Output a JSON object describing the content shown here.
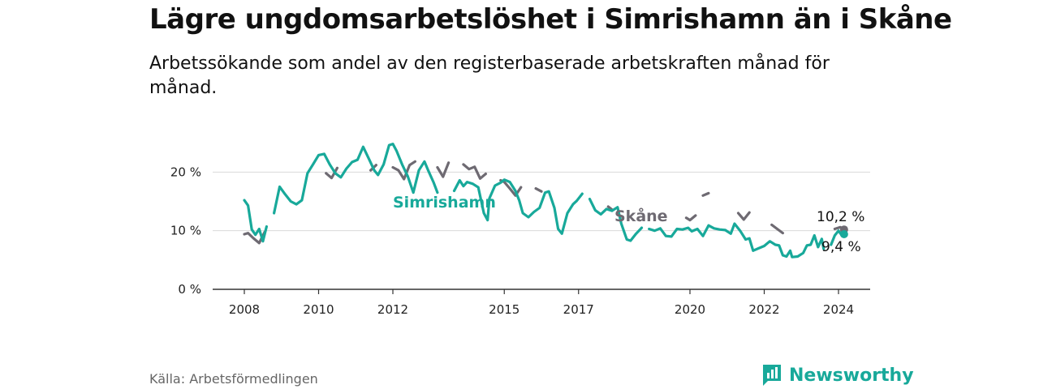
{
  "header": {
    "title": "Lägre ungdomsarbetslöshet i Simrishamn än i Skåne",
    "subtitle": "Arbetssökande som andel av den registerbaserade arbetskraften månad för månad."
  },
  "footer": {
    "source": "Källa: Arbetsförmedlingen",
    "brand": "Newsworthy"
  },
  "colors": {
    "simrishamn": "#18a99a",
    "skane": "#6e6a72",
    "grid": "#d9d9d9",
    "axis": "#333333"
  },
  "chart_data": {
    "type": "line",
    "title": "Lägre ungdomsarbetslöshet i Simrishamn än i Skåne",
    "xlabel": "",
    "ylabel": "",
    "ylim": [
      0,
      25
    ],
    "xlim": [
      2008.0,
      2024.5
    ],
    "yticks": [
      {
        "value": 0,
        "label": "0 %"
      },
      {
        "value": 10,
        "label": "10 %"
      },
      {
        "value": 20,
        "label": "20 %"
      }
    ],
    "xticks": [
      {
        "value": 2008,
        "label": "2008"
      },
      {
        "value": 2010,
        "label": "2010"
      },
      {
        "value": 2012,
        "label": "2012"
      },
      {
        "value": 2015,
        "label": "2015"
      },
      {
        "value": 2017,
        "label": "2017"
      },
      {
        "value": 2020,
        "label": "2020"
      },
      {
        "value": 2022,
        "label": "2022"
      },
      {
        "value": 2024,
        "label": "2024"
      }
    ],
    "grid": true,
    "series": [
      {
        "name": "Skåne",
        "label": "Skåne",
        "end_label": "10,2 %",
        "color": "#6e6a72",
        "points": [
          [
            2008.0,
            9.4
          ],
          [
            2008.1,
            9.6
          ],
          [
            2008.25,
            8.7
          ],
          [
            2008.4,
            7.9
          ],
          [
            2008.55,
            9.8
          ],
          [
            2008.8,
            11.5
          ],
          [
            2009.0,
            13.5
          ],
          [
            2009.2,
            15.0
          ],
          [
            2009.4,
            15.5
          ],
          [
            2009.6,
            17.5
          ],
          [
            2009.8,
            18.2
          ],
          [
            2010.0,
            18.9
          ],
          [
            2010.2,
            19.8
          ],
          [
            2010.35,
            19.0
          ],
          [
            2010.5,
            20.7
          ],
          [
            2010.75,
            20.8
          ],
          [
            2011.0,
            20.2
          ],
          [
            2011.2,
            21.0
          ],
          [
            2011.4,
            20.3
          ],
          [
            2011.55,
            21.2
          ],
          [
            2011.8,
            21.6
          ],
          [
            2012.0,
            20.8
          ],
          [
            2012.15,
            20.3
          ],
          [
            2012.3,
            18.8
          ],
          [
            2012.45,
            21.2
          ],
          [
            2012.6,
            21.8
          ],
          [
            2012.8,
            21.3
          ],
          [
            2013.0,
            21.6
          ],
          [
            2013.2,
            20.8
          ],
          [
            2013.35,
            19.2
          ],
          [
            2013.5,
            21.6
          ],
          [
            2013.7,
            21.0
          ],
          [
            2013.9,
            21.3
          ],
          [
            2014.05,
            20.5
          ],
          [
            2014.2,
            20.9
          ],
          [
            2014.35,
            18.9
          ],
          [
            2014.5,
            19.7
          ],
          [
            2014.7,
            19.4
          ],
          [
            2014.9,
            18.6
          ],
          [
            2015.0,
            18.3
          ],
          [
            2015.15,
            17.2
          ],
          [
            2015.3,
            16.0
          ],
          [
            2015.45,
            17.4
          ],
          [
            2015.65,
            17.8
          ],
          [
            2015.85,
            17.2
          ],
          [
            2016.0,
            16.7
          ],
          [
            2016.2,
            16.4
          ],
          [
            2016.4,
            14.8
          ],
          [
            2016.6,
            15.2
          ],
          [
            2016.8,
            15.0
          ],
          [
            2017.0,
            15.1
          ],
          [
            2017.2,
            14.8
          ],
          [
            2017.4,
            13.2
          ],
          [
            2017.6,
            14.3
          ],
          [
            2017.8,
            14.1
          ],
          [
            2017.9,
            13.6
          ],
          [
            2018.9,
            11.8
          ],
          [
            2019.1,
            11.6
          ],
          [
            2019.3,
            10.5
          ],
          [
            2019.5,
            12.1
          ],
          [
            2019.7,
            11.8
          ],
          [
            2019.9,
            12.2
          ],
          [
            2020.0,
            11.8
          ],
          [
            2020.15,
            12.6
          ],
          [
            2020.35,
            16.0
          ],
          [
            2020.5,
            16.4
          ],
          [
            2020.7,
            15.2
          ],
          [
            2020.9,
            14.4
          ],
          [
            2021.1,
            14.2
          ],
          [
            2021.3,
            13.0
          ],
          [
            2021.45,
            11.9
          ],
          [
            2021.6,
            13.1
          ],
          [
            2021.8,
            12.3
          ],
          [
            2022.0,
            11.4
          ],
          [
            2022.2,
            11.0
          ],
          [
            2022.35,
            10.3
          ],
          [
            2022.5,
            9.6
          ],
          [
            2022.7,
            10.0
          ],
          [
            2022.9,
            10.1
          ],
          [
            2023.1,
            9.9
          ],
          [
            2023.3,
            9.8
          ],
          [
            2023.5,
            9.4
          ],
          [
            2023.7,
            10.3
          ],
          [
            2023.9,
            10.3
          ],
          [
            2024.05,
            10.6
          ],
          [
            2024.15,
            10.2
          ]
        ]
      },
      {
        "name": "Simrishamn",
        "label": "Simrishamn",
        "end_label": "9,4 %",
        "color": "#18a99a",
        "points": [
          [
            2008.0,
            15.2
          ],
          [
            2008.1,
            14.3
          ],
          [
            2008.2,
            10.2
          ],
          [
            2008.3,
            9.3
          ],
          [
            2008.4,
            10.3
          ],
          [
            2008.5,
            8.2
          ],
          [
            2008.6,
            10.7
          ],
          [
            2008.8,
            13.0
          ],
          [
            2008.95,
            17.5
          ],
          [
            2009.1,
            16.2
          ],
          [
            2009.25,
            15.0
          ],
          [
            2009.4,
            14.5
          ],
          [
            2009.55,
            15.2
          ],
          [
            2009.7,
            19.8
          ],
          [
            2009.85,
            21.3
          ],
          [
            2010.0,
            22.9
          ],
          [
            2010.15,
            23.1
          ],
          [
            2010.3,
            21.3
          ],
          [
            2010.45,
            19.8
          ],
          [
            2010.6,
            19.1
          ],
          [
            2010.75,
            20.6
          ],
          [
            2010.9,
            21.7
          ],
          [
            2011.05,
            22.1
          ],
          [
            2011.2,
            24.3
          ],
          [
            2011.35,
            22.3
          ],
          [
            2011.5,
            20.3
          ],
          [
            2011.6,
            19.5
          ],
          [
            2011.75,
            21.3
          ],
          [
            2011.9,
            24.6
          ],
          [
            2012.0,
            24.8
          ],
          [
            2012.1,
            23.6
          ],
          [
            2012.25,
            21.3
          ],
          [
            2012.4,
            19.3
          ],
          [
            2012.55,
            16.5
          ],
          [
            2012.7,
            20.3
          ],
          [
            2012.85,
            21.8
          ],
          [
            2012.95,
            20.3
          ],
          [
            2013.1,
            18.2
          ],
          [
            2013.2,
            16.5
          ],
          [
            2013.65,
            16.8
          ],
          [
            2013.8,
            18.6
          ],
          [
            2013.9,
            17.6
          ],
          [
            2014.0,
            18.3
          ],
          [
            2014.15,
            18.0
          ],
          [
            2014.3,
            17.4
          ],
          [
            2014.45,
            13.0
          ],
          [
            2014.55,
            11.8
          ],
          [
            2014.6,
            15.5
          ],
          [
            2014.75,
            17.7
          ],
          [
            2014.9,
            18.2
          ],
          [
            2015.0,
            18.7
          ],
          [
            2015.15,
            18.3
          ],
          [
            2015.3,
            16.8
          ],
          [
            2015.4,
            15.2
          ],
          [
            2015.5,
            13.0
          ],
          [
            2015.65,
            12.3
          ],
          [
            2015.8,
            13.2
          ],
          [
            2015.95,
            13.9
          ],
          [
            2016.1,
            16.5
          ],
          [
            2016.2,
            16.7
          ],
          [
            2016.35,
            13.9
          ],
          [
            2016.45,
            10.3
          ],
          [
            2016.55,
            9.5
          ],
          [
            2016.7,
            13.0
          ],
          [
            2016.85,
            14.5
          ],
          [
            2016.95,
            15.1
          ],
          [
            2017.1,
            16.3
          ],
          [
            2017.3,
            15.4
          ],
          [
            2017.45,
            13.5
          ],
          [
            2017.6,
            12.8
          ],
          [
            2017.75,
            13.7
          ],
          [
            2017.9,
            13.4
          ],
          [
            2018.05,
            14.0
          ],
          [
            2018.15,
            11.2
          ],
          [
            2018.3,
            8.5
          ],
          [
            2018.4,
            8.3
          ],
          [
            2018.55,
            9.5
          ],
          [
            2018.7,
            10.5
          ],
          [
            2018.9,
            10.3
          ],
          [
            2019.05,
            10.0
          ],
          [
            2019.2,
            10.4
          ],
          [
            2019.35,
            9.1
          ],
          [
            2019.5,
            9.0
          ],
          [
            2019.65,
            10.3
          ],
          [
            2019.8,
            10.2
          ],
          [
            2019.95,
            10.5
          ],
          [
            2020.05,
            9.9
          ],
          [
            2020.2,
            10.3
          ],
          [
            2020.35,
            9.1
          ],
          [
            2020.5,
            10.9
          ],
          [
            2020.65,
            10.4
          ],
          [
            2020.8,
            10.2
          ],
          [
            2020.95,
            10.1
          ],
          [
            2021.1,
            9.5
          ],
          [
            2021.2,
            11.2
          ],
          [
            2021.35,
            10.0
          ],
          [
            2021.5,
            8.5
          ],
          [
            2021.6,
            8.7
          ],
          [
            2021.7,
            6.6
          ],
          [
            2021.85,
            7.0
          ],
          [
            2022.0,
            7.4
          ],
          [
            2022.15,
            8.2
          ],
          [
            2022.3,
            7.6
          ],
          [
            2022.4,
            7.5
          ],
          [
            2022.5,
            5.8
          ],
          [
            2022.6,
            5.6
          ],
          [
            2022.7,
            6.6
          ],
          [
            2022.75,
            5.5
          ],
          [
            2022.9,
            5.6
          ],
          [
            2023.05,
            6.2
          ],
          [
            2023.15,
            7.5
          ],
          [
            2023.25,
            7.6
          ],
          [
            2023.35,
            9.2
          ],
          [
            2023.45,
            7.2
          ],
          [
            2023.55,
            8.6
          ],
          [
            2023.6,
            6.9
          ],
          [
            2023.8,
            7.6
          ],
          [
            2023.9,
            9.2
          ],
          [
            2024.0,
            10.0
          ],
          [
            2024.1,
            9.1
          ],
          [
            2024.15,
            9.4
          ]
        ]
      }
    ]
  }
}
